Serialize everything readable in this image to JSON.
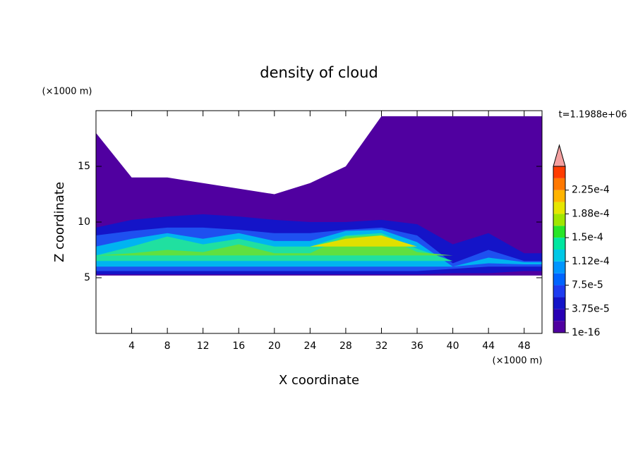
{
  "chart_data": {
    "type": "contour",
    "title": "density of cloud",
    "x_label": "X coordinate",
    "y_label": "Z coordinate",
    "x_unit": "(×1000 m)",
    "y_unit": "(×1000 m)",
    "time_label": "t=1.1988e+06",
    "xlim": [
      0,
      50
    ],
    "ylim": [
      0,
      20
    ],
    "xticks": [
      4,
      8,
      12,
      16,
      20,
      24,
      28,
      32,
      36,
      40,
      44,
      48
    ],
    "yticks": [
      5,
      10,
      15
    ],
    "x": [
      0,
      4,
      8,
      12,
      16,
      20,
      24,
      28,
      32,
      36,
      40,
      44,
      48,
      50
    ],
    "series": [
      {
        "color": "#5000a0",
        "lower": [
          5.2,
          5.2,
          5.2,
          5.2,
          5.2,
          5.2,
          5.2,
          5.2,
          5.2,
          5.2,
          5.2,
          5.2,
          5.2,
          5.2
        ],
        "top": [
          18,
          14,
          14,
          13.5,
          13,
          12.5,
          13.5,
          15,
          19.5,
          19.5,
          19.5,
          19.5,
          19.5,
          19.5
        ]
      },
      {
        "color": "#1414c8",
        "lower": [
          5.3,
          5.3,
          5.3,
          5.3,
          5.3,
          5.3,
          5.3,
          5.3,
          5.3,
          5.3,
          5.4,
          5.4,
          5.6,
          5.6
        ],
        "top": [
          9.5,
          10.2,
          10.5,
          10.7,
          10.5,
          10.2,
          10,
          10,
          10.2,
          9.8,
          8,
          9,
          7.2,
          7.2
        ]
      },
      {
        "color": "#1e50f0",
        "lower": [
          5.6,
          5.6,
          5.6,
          5.6,
          5.6,
          5.6,
          5.6,
          5.6,
          5.6,
          5.6,
          5.8,
          6,
          6,
          6
        ],
        "top": [
          8.8,
          9.2,
          9.5,
          9.5,
          9.3,
          9,
          9,
          9.3,
          9.5,
          8.8,
          6.3,
          7.5,
          6.5,
          6.5
        ]
      },
      {
        "color": "#00b4f0",
        "lower": [
          6,
          6,
          6,
          6,
          6,
          6,
          6,
          6,
          6,
          6,
          6,
          6.3,
          6.2,
          6.2
        ],
        "top": [
          7.8,
          8.5,
          9,
          8.5,
          9,
          8.3,
          8.3,
          9.2,
          9.3,
          8.2,
          6,
          6.8,
          6.4,
          6.4
        ]
      },
      {
        "color": "#20e0a0",
        "lower": [
          6.5,
          6.5,
          6.5,
          6.5,
          6.5,
          6.5,
          6.5,
          6.5,
          6.5,
          6.5,
          6.5,
          6.5,
          6.5,
          6.5
        ],
        "top": [
          7,
          7.8,
          8.7,
          8,
          8.5,
          7.8,
          7.8,
          8.8,
          9,
          7.6,
          6.5,
          6.5,
          6.5,
          6.5
        ]
      },
      {
        "color": "#60e040",
        "lower": [
          7,
          7,
          7,
          7,
          7,
          7,
          7,
          7,
          7,
          7,
          7,
          7,
          7,
          7
        ],
        "top": [
          7,
          7.2,
          7.5,
          7.3,
          8,
          7.2,
          7.2,
          8.7,
          8.8,
          7.3,
          7,
          7,
          7,
          7
        ]
      },
      {
        "color": "#e0e000",
        "lower": [
          7.8,
          7.8,
          7.8,
          7.8,
          7.8,
          7.8,
          7.8,
          7.8,
          7.8,
          7.8,
          7.8,
          7.8,
          7.8,
          7.8
        ],
        "top": [
          7.8,
          7.8,
          7.8,
          7.8,
          7.8,
          7.8,
          7.8,
          8.5,
          8.8,
          7.8,
          7.8,
          7.8,
          7.8,
          7.8
        ]
      }
    ],
    "colorbar": {
      "lim": [
        0,
        0.0002625
      ],
      "colors": [
        "#5000a0",
        "#2800b4",
        "#1414c8",
        "#1e3cf0",
        "#0064ff",
        "#0096ff",
        "#00c8e6",
        "#00e6a0",
        "#28e628",
        "#a0e600",
        "#e6e600",
        "#ffb400",
        "#ff7800",
        "#ff3c00"
      ],
      "extend_color": "#f4a0a0",
      "ticks": [
        {
          "value": 1e-16,
          "label": "1e-16"
        },
        {
          "value": 3.75e-05,
          "label": "3.75e-5"
        },
        {
          "value": 7.5e-05,
          "label": "7.5e-5"
        },
        {
          "value": 0.0001125,
          "label": "1.12e-4"
        },
        {
          "value": 0.00015,
          "label": "1.5e-4"
        },
        {
          "value": 0.0001875,
          "label": "1.88e-4"
        },
        {
          "value": 0.000225,
          "label": "2.25e-4"
        }
      ]
    }
  }
}
